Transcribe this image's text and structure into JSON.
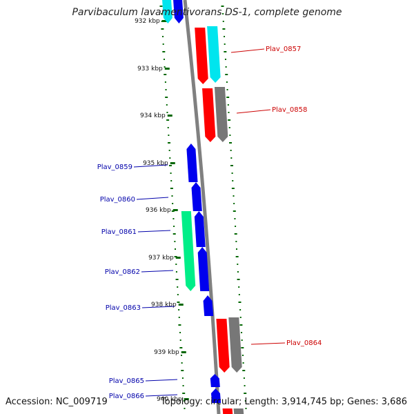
{
  "title": "Parvibaculum lavamentivorans DS-1, complete genome",
  "footer": {
    "accession": "Accession: NC_009719",
    "topology": "Topology: circular; Length: 3,914,745 bp; Genes: 3,686"
  },
  "scale_labels": [
    "932 kbp",
    "933 kbp",
    "934 kbp",
    "935 kbp",
    "936 kbp",
    "937 kbp",
    "938 kbp",
    "939 kbp",
    "940 kbp"
  ],
  "colors": {
    "reverse_label": "#cc0000",
    "forward_label": "#0000aa",
    "backbone": "#808080",
    "ticks": "#006600"
  },
  "genes": [
    {
      "label": "Plav_0857",
      "strand": "reverse",
      "color": "#ff0000",
      "label_color": "#cc0000"
    },
    {
      "label": "Plav_0858",
      "strand": "reverse",
      "color": "#ff0000",
      "label_color": "#cc0000"
    },
    {
      "label": "Plav_0859",
      "strand": "forward",
      "color": "#0000ee",
      "label_color": "#0000aa"
    },
    {
      "label": "Plav_0860",
      "strand": "forward",
      "color": "#0000ee",
      "label_color": "#0000aa"
    },
    {
      "label": "Plav_0861",
      "strand": "forward",
      "color": "#0000ee",
      "label_color": "#0000aa"
    },
    {
      "label": "Plav_0862",
      "strand": "forward",
      "color": "#0000ee",
      "label_color": "#0000aa"
    },
    {
      "label": "Plav_0863",
      "strand": "forward",
      "color": "#0000ee",
      "label_color": "#0000aa"
    },
    {
      "label": "Plav_0864",
      "strand": "reverse",
      "color": "#ff0000",
      "label_color": "#cc0000"
    },
    {
      "label": "Plav_0865",
      "strand": "forward",
      "color": "#0000ee",
      "label_color": "#0000aa"
    },
    {
      "label": "Plav_0866",
      "strand": "forward",
      "color": "#0000ee",
      "label_color": "#0000aa"
    }
  ],
  "feature_colors": {
    "cds_cyan": "#00e5ee",
    "cds_grey": "#777777",
    "cds_green": "#00ee88"
  }
}
